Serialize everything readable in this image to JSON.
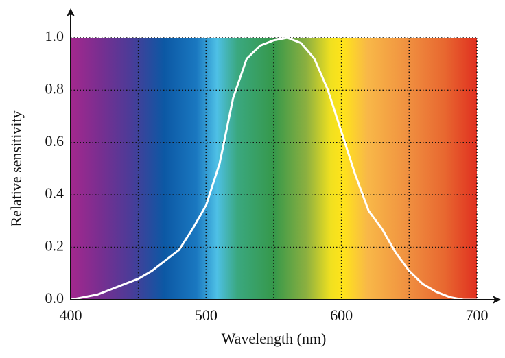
{
  "chart_data": {
    "type": "line",
    "xlabel": "Wavelength (nm)",
    "ylabel": "Relative sensitivity",
    "x": [
      400,
      410,
      420,
      430,
      440,
      450,
      460,
      470,
      480,
      490,
      500,
      510,
      520,
      530,
      540,
      550,
      560,
      570,
      580,
      590,
      600,
      610,
      620,
      630,
      640,
      650,
      660,
      670,
      680,
      690,
      700
    ],
    "values": [
      0.0,
      0.01,
      0.02,
      0.04,
      0.06,
      0.08,
      0.11,
      0.15,
      0.19,
      0.27,
      0.36,
      0.52,
      0.77,
      0.92,
      0.97,
      0.99,
      1.0,
      0.98,
      0.92,
      0.8,
      0.64,
      0.48,
      0.34,
      0.27,
      0.18,
      0.11,
      0.06,
      0.03,
      0.01,
      0.0,
      0.0
    ],
    "color": "#ffffff",
    "xlim": [
      400,
      700
    ],
    "ylim": [
      0,
      1
    ],
    "xticks": [
      400,
      500,
      600,
      700
    ],
    "yticks": [
      {
        "value": 0,
        "label": "0.0"
      },
      0.2,
      0.4,
      0.6,
      0.8,
      {
        "value": 1,
        "label": "1.0"
      }
    ],
    "x_grid_lines": [
      450,
      500,
      550,
      600,
      650,
      700
    ],
    "grid": true
  }
}
